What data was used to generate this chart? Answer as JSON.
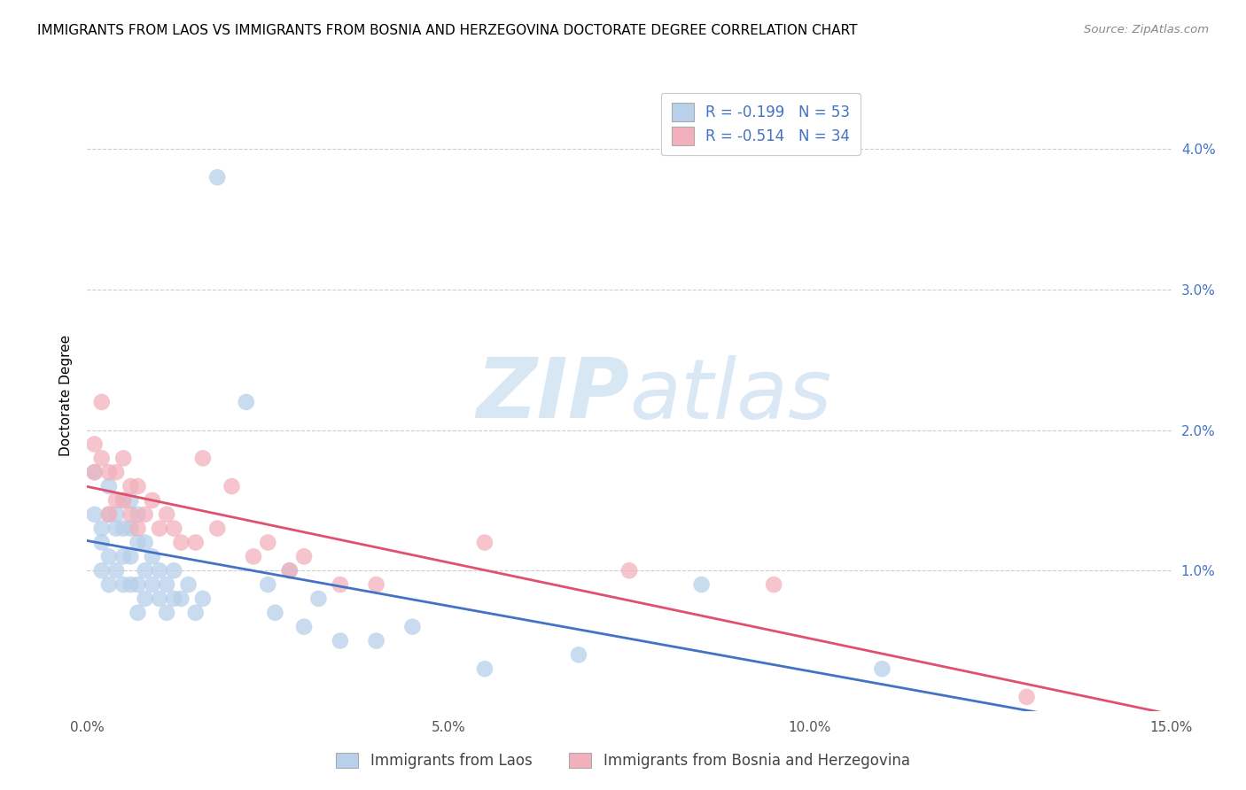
{
  "title": "IMMIGRANTS FROM LAOS VS IMMIGRANTS FROM BOSNIA AND HERZEGOVINA DOCTORATE DEGREE CORRELATION CHART",
  "source": "Source: ZipAtlas.com",
  "ylabel": "Doctorate Degree",
  "xlim": [
    0.0,
    0.15
  ],
  "ylim": [
    0.0,
    0.045
  ],
  "xticks": [
    0.0,
    0.05,
    0.1,
    0.15
  ],
  "xtick_labels": [
    "0.0%",
    "5.0%",
    "10.0%",
    "15.0%"
  ],
  "yticks": [
    0.01,
    0.02,
    0.03,
    0.04
  ],
  "ytick_labels": [
    "1.0%",
    "2.0%",
    "3.0%",
    "4.0%"
  ],
  "legend1_r": "R = -0.199",
  "legend1_n": "N = 53",
  "legend2_r": "R = -0.514",
  "legend2_n": "N = 34",
  "series1_color": "#b8d0ea",
  "series2_color": "#f2b0bc",
  "line1_color": "#4472C4",
  "line2_color": "#E05070",
  "watermark_zip": "ZIP",
  "watermark_atlas": "atlas",
  "series1_name": "Immigrants from Laos",
  "series2_name": "Immigrants from Bosnia and Herzegovina",
  "laos_x": [
    0.001,
    0.001,
    0.002,
    0.002,
    0.002,
    0.003,
    0.003,
    0.003,
    0.003,
    0.004,
    0.004,
    0.004,
    0.005,
    0.005,
    0.005,
    0.005,
    0.006,
    0.006,
    0.006,
    0.006,
    0.007,
    0.007,
    0.007,
    0.007,
    0.008,
    0.008,
    0.008,
    0.009,
    0.009,
    0.01,
    0.01,
    0.011,
    0.011,
    0.012,
    0.012,
    0.013,
    0.014,
    0.015,
    0.016,
    0.018,
    0.022,
    0.025,
    0.026,
    0.028,
    0.03,
    0.032,
    0.035,
    0.04,
    0.045,
    0.055,
    0.068,
    0.085,
    0.11
  ],
  "laos_y": [
    0.017,
    0.014,
    0.013,
    0.012,
    0.01,
    0.016,
    0.014,
    0.011,
    0.009,
    0.014,
    0.013,
    0.01,
    0.015,
    0.013,
    0.011,
    0.009,
    0.015,
    0.013,
    0.011,
    0.009,
    0.014,
    0.012,
    0.009,
    0.007,
    0.012,
    0.01,
    0.008,
    0.011,
    0.009,
    0.01,
    0.008,
    0.009,
    0.007,
    0.01,
    0.008,
    0.008,
    0.009,
    0.007,
    0.008,
    0.038,
    0.022,
    0.009,
    0.007,
    0.01,
    0.006,
    0.008,
    0.005,
    0.005,
    0.006,
    0.003,
    0.004,
    0.009,
    0.003
  ],
  "bosnia_x": [
    0.001,
    0.001,
    0.002,
    0.002,
    0.003,
    0.003,
    0.004,
    0.004,
    0.005,
    0.005,
    0.006,
    0.006,
    0.007,
    0.007,
    0.008,
    0.009,
    0.01,
    0.011,
    0.012,
    0.013,
    0.015,
    0.016,
    0.018,
    0.02,
    0.023,
    0.025,
    0.028,
    0.03,
    0.035,
    0.04,
    0.055,
    0.075,
    0.095,
    0.13
  ],
  "bosnia_y": [
    0.019,
    0.017,
    0.022,
    0.018,
    0.017,
    0.014,
    0.017,
    0.015,
    0.018,
    0.015,
    0.016,
    0.014,
    0.016,
    0.013,
    0.014,
    0.015,
    0.013,
    0.014,
    0.013,
    0.012,
    0.012,
    0.018,
    0.013,
    0.016,
    0.011,
    0.012,
    0.01,
    0.011,
    0.009,
    0.009,
    0.012,
    0.01,
    0.009,
    0.001
  ]
}
